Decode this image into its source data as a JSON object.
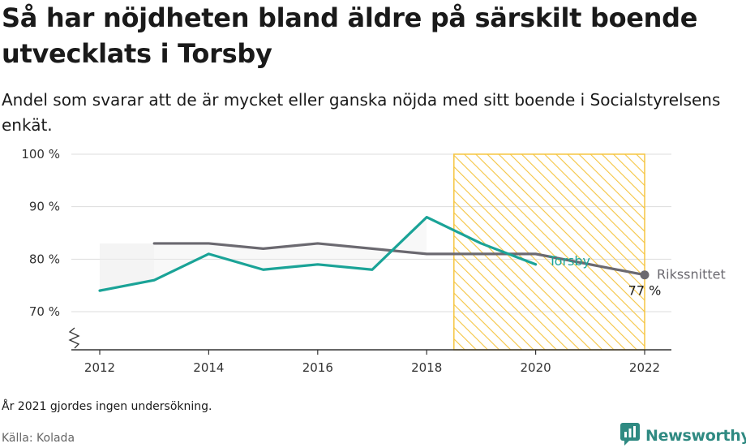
{
  "header": {
    "title": "Så har nöjdheten bland äldre på särskilt boende utvecklats i Torsby",
    "subtitle": "Andel som svarar att de är mycket eller ganska nöjda med sitt boende i Socialstyrelsens enkät."
  },
  "footer": {
    "note": "År 2021 gjordes ingen undersökning.",
    "source": "Källa: Kolada",
    "brand": "Newsworthy"
  },
  "colors": {
    "torsby": "#1aa397",
    "riks": "#6b6970",
    "highlight": "#f5c542",
    "band": "#ececec",
    "grid": "#dddddd"
  },
  "icons": {
    "brand_logo": "newsworthy-logo-icon",
    "axis_break": "axis-break-icon"
  },
  "chart_data": {
    "type": "line",
    "title": "Så har nöjdheten bland äldre på särskilt boende utvecklats i Torsby",
    "xlabel": "",
    "ylabel": "",
    "xlim": [
      2012,
      2022
    ],
    "ylim": [
      63,
      100
    ],
    "xticks": [
      2012,
      2014,
      2016,
      2018,
      2020,
      2022
    ],
    "xtick_labels": [
      "2012",
      "2014",
      "2016",
      "2018",
      "2020",
      "2022"
    ],
    "yticks": [
      70,
      80,
      90,
      100
    ],
    "ytick_labels": [
      "70 %",
      "80 %",
      "90 %",
      "100 %"
    ],
    "grid": true,
    "axis_break": true,
    "highlight_range": [
      2018.5,
      2022
    ],
    "series": [
      {
        "name": "Torsby",
        "x": [
          2012,
          2013,
          2014,
          2015,
          2016,
          2017,
          2018,
          2019,
          2020
        ],
        "values": [
          74,
          76,
          81,
          78,
          79,
          78,
          88,
          83,
          79
        ]
      },
      {
        "name": "Rikssnittet",
        "x": [
          2013,
          2014,
          2015,
          2016,
          2017,
          2018,
          2019,
          2020,
          2022
        ],
        "values": [
          83,
          83,
          82,
          83,
          82,
          81,
          81,
          81,
          77
        ]
      }
    ],
    "annotations": [
      {
        "text": "77 %",
        "x": 2022,
        "y": 77
      }
    ]
  }
}
